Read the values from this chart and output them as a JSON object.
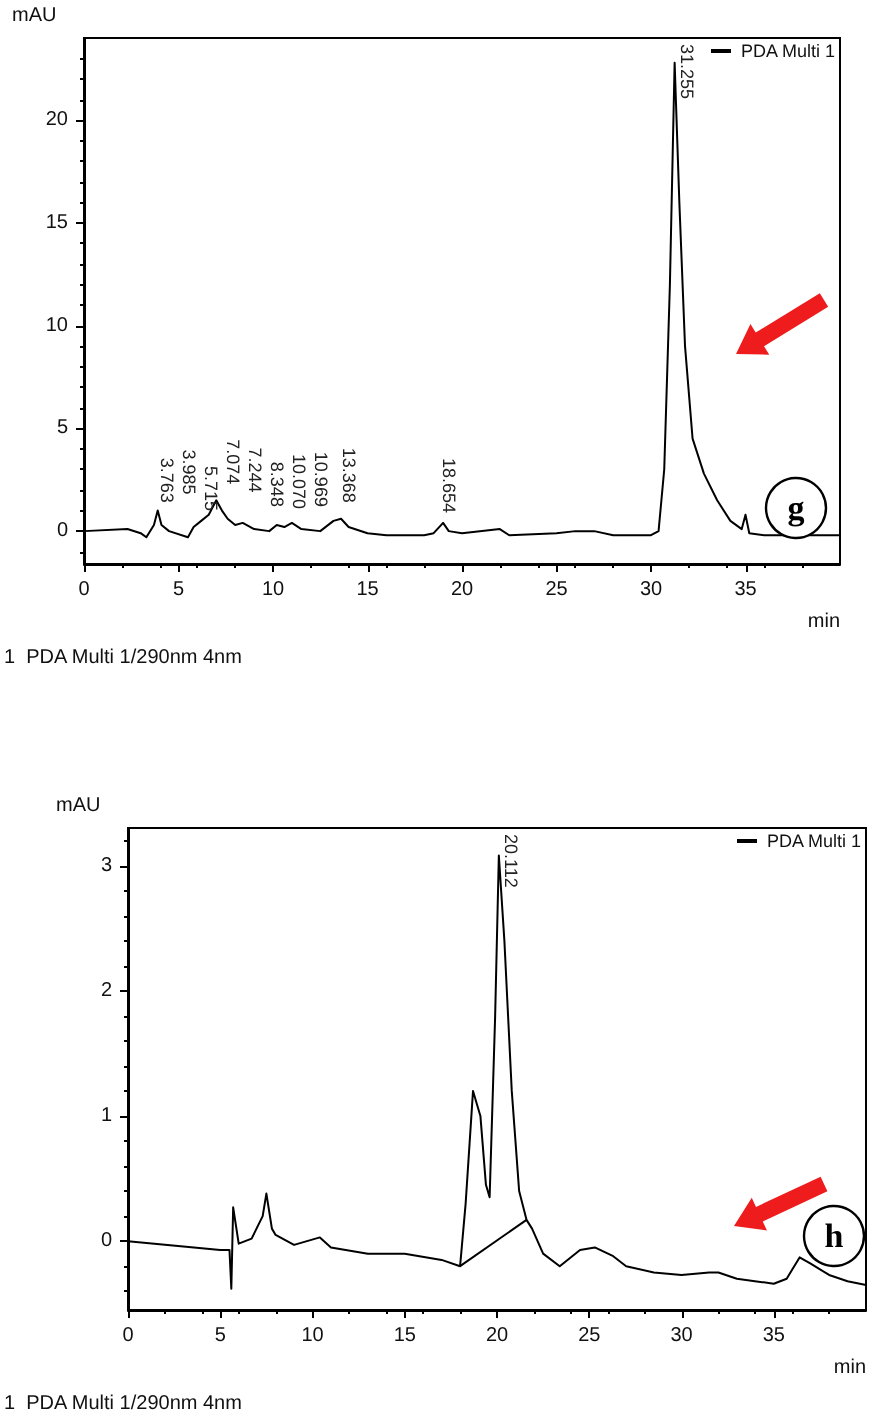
{
  "chart_data": [
    {
      "type": "line",
      "xlabel": "min",
      "ylabel": "mAU",
      "legend": "top right",
      "marker": "none",
      "grid": false,
      "xlim": [
        0,
        40
      ],
      "xticks": [
        0,
        5,
        10,
        15,
        20,
        25,
        30,
        35
      ],
      "ylim": [
        -1.6,
        24
      ],
      "yticks": [
        0,
        5,
        10,
        15,
        20
      ],
      "series": [
        {
          "name": "PDA Multi 1",
          "color": "#000000",
          "x": [
            0,
            2.3,
            3,
            3.3,
            3.7,
            3.9,
            4.1,
            4.5,
            5.5,
            5.8,
            6.2,
            6.6,
            7,
            7.3,
            7.6,
            8,
            8.4,
            9,
            9.8,
            10.2,
            10.6,
            11,
            11.5,
            12.5,
            13.2,
            13.6,
            14,
            15,
            16,
            17,
            18,
            18.5,
            19,
            19.3,
            20,
            22,
            22.5,
            25,
            26,
            27,
            28,
            30,
            30.4,
            30.7,
            31,
            31.25,
            31.5,
            31.8,
            32.2,
            32.8,
            33.5,
            34.2,
            34.8,
            35,
            35.2,
            36,
            40
          ],
          "values": [
            0,
            0.1,
            -0.1,
            -0.3,
            0.3,
            1,
            0.3,
            0,
            -0.3,
            0.2,
            0.5,
            0.8,
            1.5,
            1,
            0.6,
            0.3,
            0.4,
            0.1,
            0,
            0.3,
            0.2,
            0.4,
            0.1,
            0,
            0.5,
            0.6,
            0.2,
            -0.1,
            -0.2,
            -0.2,
            -0.2,
            -0.1,
            0.4,
            0,
            -0.1,
            0.1,
            -0.2,
            -0.1,
            0,
            0,
            -0.2,
            -0.2,
            0,
            3,
            12,
            22.8,
            16,
            9,
            4.5,
            2.8,
            1.5,
            0.5,
            0.1,
            0.8,
            -0.1,
            -0.2,
            -0.2
          ]
        }
      ],
      "annotations": [
        {
          "text": "3.763",
          "x": 3.763,
          "y": 0.6
        },
        {
          "text": "3.985",
          "x": 3.985,
          "y": 1
        },
        {
          "text": "5.715",
          "x": 5.715,
          "y": 0.2
        },
        {
          "text": "7.074",
          "x": 7.074,
          "y": 1.5
        },
        {
          "text": "7.244",
          "x": 7.244,
          "y": 1.1
        },
        {
          "text": "8.348",
          "x": 8.348,
          "y": 0.4
        },
        {
          "text": "10.070",
          "x": 10.07,
          "y": 0.3
        },
        {
          "text": "10.969",
          "x": 10.969,
          "y": 0.4
        },
        {
          "text": "13.368",
          "x": 13.368,
          "y": 0.6
        },
        {
          "text": "18.654",
          "x": 18.654,
          "y": 0.1
        },
        {
          "text": "31.255",
          "x": 31.255,
          "y": 22.8
        },
        "1  PDA Multi 1/290nm 4nm",
        "g"
      ]
    },
    {
      "type": "line",
      "xlabel": "min",
      "ylabel": "mAU",
      "legend": "top right",
      "marker": "none",
      "grid": false,
      "xlim": [
        0,
        40
      ],
      "xticks": [
        0,
        5,
        10,
        15,
        20,
        25,
        30,
        35
      ],
      "ylim": [
        -0.55,
        3.3
      ],
      "yticks": [
        0,
        1,
        2,
        3
      ],
      "series": [
        {
          "name": "PDA Multi 1",
          "color": "#000000",
          "x": [
            0,
            5,
            5.5,
            5.6,
            5.7,
            6,
            6.7,
            7.3,
            7.5,
            7.8,
            8,
            9,
            10.4,
            11,
            13,
            15,
            17,
            18,
            18.3,
            18.7,
            19.1,
            19.4,
            19.6,
            19.9,
            20.1,
            20.4,
            20.8,
            21.2,
            21.6,
            21.9,
            22.5,
            23.4,
            24.5,
            25.3,
            26.3,
            27,
            28.5,
            30,
            31.5,
            32,
            33,
            35,
            35.7,
            36.4,
            37,
            38,
            39,
            40
          ],
          "values": [
            0,
            -0.07,
            -0.07,
            -0.38,
            0.27,
            -0.02,
            0.02,
            0.2,
            0.38,
            0.1,
            0.05,
            -0.03,
            0.03,
            -0.05,
            -0.1,
            -0.1,
            -0.15,
            -0.2,
            0.3,
            1.2,
            1,
            0.45,
            0.35,
            1.8,
            3.08,
            2.4,
            1.2,
            0.4,
            0.17,
            0.1,
            -0.1,
            -0.2,
            -0.07,
            -0.05,
            -0.12,
            -0.2,
            -0.25,
            -0.27,
            -0.25,
            -0.25,
            -0.3,
            -0.34,
            -0.3,
            -0.13,
            -0.18,
            -0.27,
            -0.32,
            -0.35
          ]
        },
        {
          "color": "#000000",
          "x": [
            18,
            21.6
          ],
          "values": [
            -0.2,
            0.17
          ]
        }
      ],
      "annotations": [
        {
          "text": "20.112",
          "x": 20.112,
          "y": 3.08
        },
        "1  PDA Multi 1/290nm 4nm",
        "h"
      ]
    }
  ]
}
